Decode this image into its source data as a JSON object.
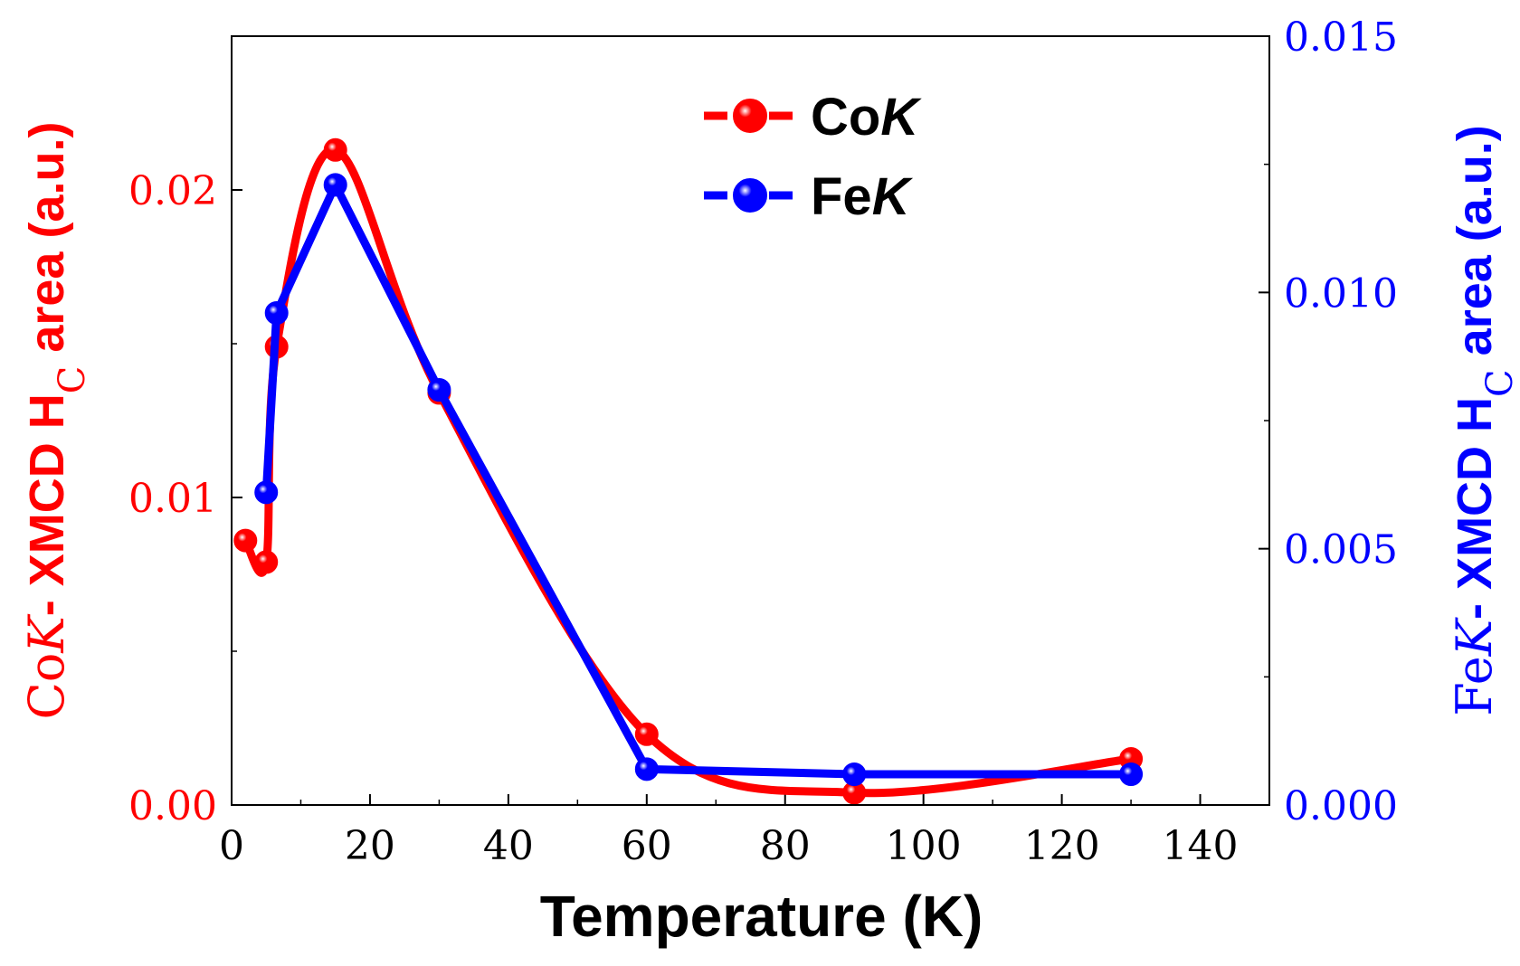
{
  "chart_data": {
    "type": "line",
    "x_axis": {
      "title": "Temperature (K)",
      "range": [
        0,
        150
      ],
      "ticks": [
        0,
        20,
        40,
        60,
        80,
        100,
        120,
        140
      ],
      "tick_labels": [
        "0",
        "20",
        "40",
        "60",
        "80",
        "100",
        "120",
        "140"
      ],
      "minor_step": 10
    },
    "y_left": {
      "title_parts": [
        "Co",
        "K",
        "- XMCD H",
        "C",
        " area (a.u.)"
      ],
      "range": [
        0,
        0.025
      ],
      "ticks": [
        0,
        0.01,
        0.02
      ],
      "tick_labels": [
        "0.00",
        "0.01",
        "0.02"
      ],
      "minor_step": 0.005
    },
    "y_right": {
      "title_parts": [
        "Fe",
        "K",
        "- XMCD H",
        "C",
        " area (a.u.)"
      ],
      "range": [
        0,
        0.015
      ],
      "ticks": [
        0,
        0.005,
        0.01,
        0.015
      ],
      "tick_labels": [
        "0.000",
        "0.005",
        "0.010",
        "0.015"
      ],
      "minor_step": 0.0025
    },
    "series": [
      {
        "name": "CoK",
        "label_parts": [
          "Co",
          "K"
        ],
        "axis": "left",
        "color": "#ff0000",
        "smooth": true,
        "x": [
          2,
          5,
          6.5,
          15,
          30,
          60,
          90,
          130
        ],
        "y": [
          0.0086,
          0.0079,
          0.0149,
          0.0213,
          0.0134,
          0.0023,
          0.0004,
          0.0015
        ]
      },
      {
        "name": "FeK",
        "label_parts": [
          "Fe",
          "K"
        ],
        "axis": "right",
        "color": "#0000ff",
        "smooth": false,
        "x": [
          5,
          6.5,
          15,
          30,
          60,
          90,
          130
        ],
        "y": [
          0.0061,
          0.0096,
          0.0121,
          0.0081,
          0.0007,
          0.0006,
          0.0006
        ]
      }
    ],
    "legend": {
      "position": "top-center"
    }
  }
}
